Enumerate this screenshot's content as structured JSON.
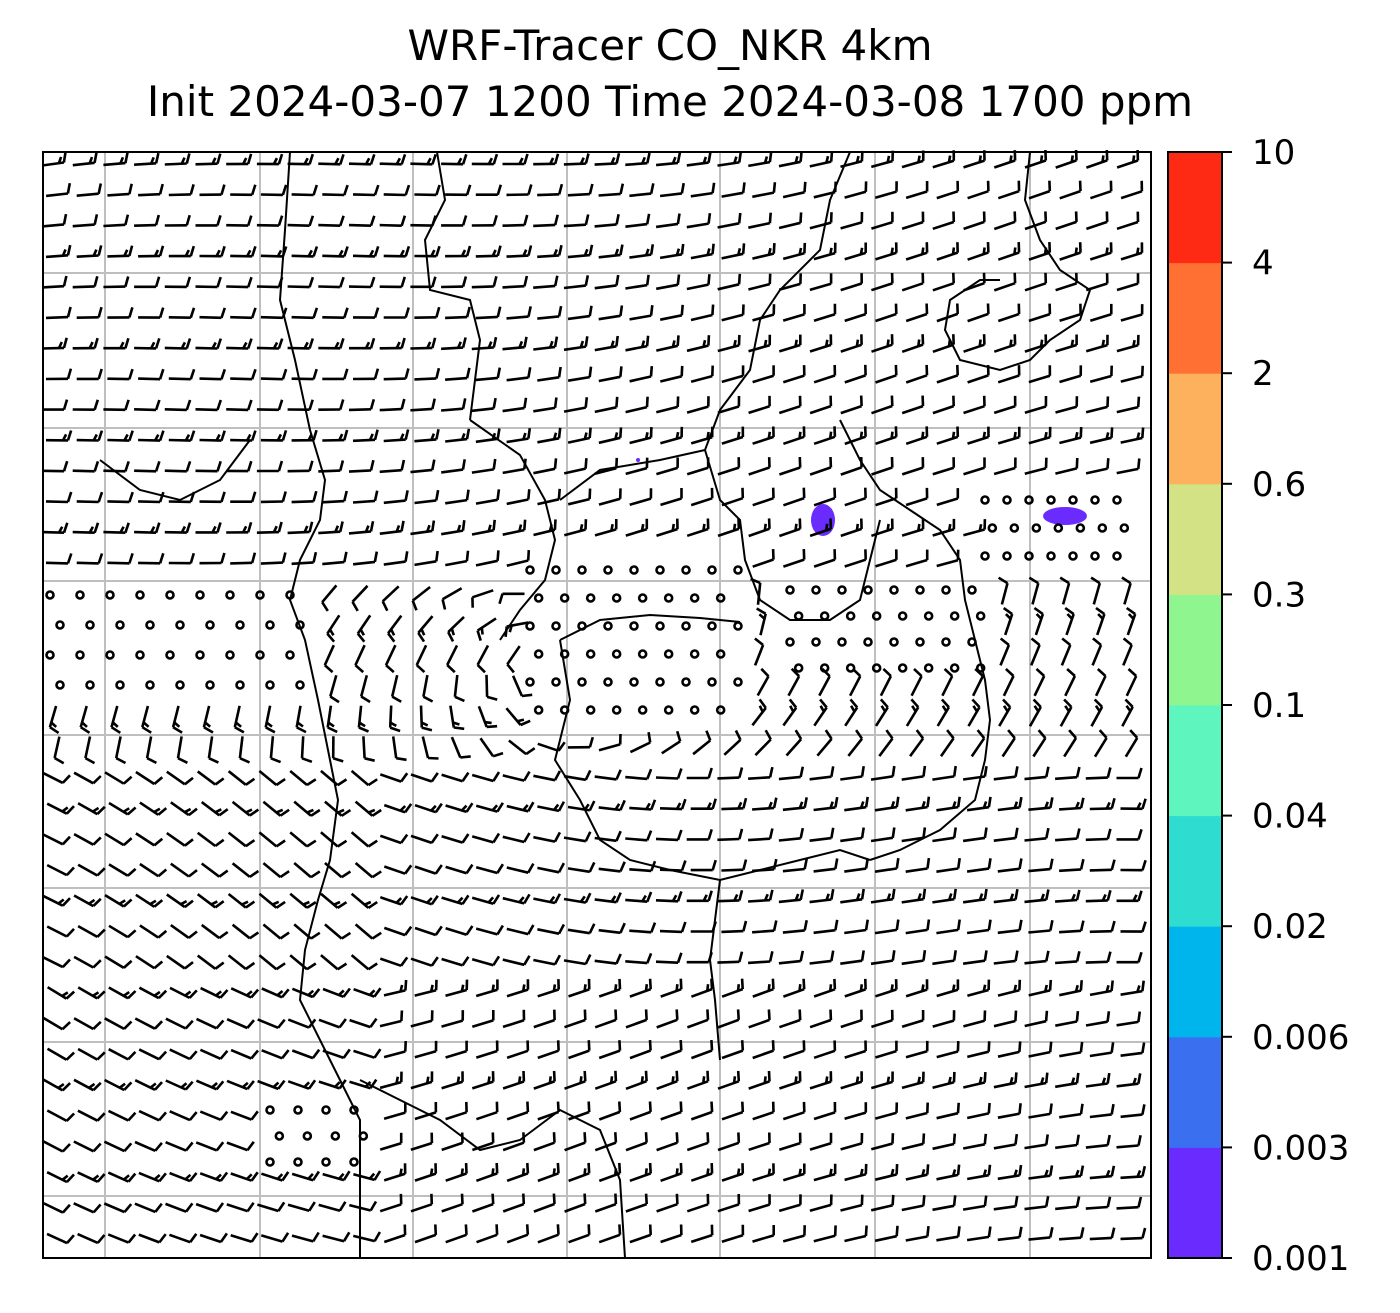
{
  "title": {
    "line1": "WRF-Tracer CO_NKR 4km",
    "line2": "Init 2024-03-07 1200 Time 2024-03-08 1700 ppm"
  },
  "colorbar": {
    "tick_labels": [
      "0.001",
      "0.003",
      "0.006",
      "0.02",
      "0.04",
      "0.1",
      "0.3",
      "0.6",
      "2",
      "4",
      "10"
    ],
    "colors": [
      "#6a2bff",
      "#3a6ff0",
      "#00b4ec",
      "#2fdcd0",
      "#5ef5be",
      "#8ff58f",
      "#d2e285",
      "#fdb15d",
      "#ff7032",
      "#ff2a14"
    ]
  },
  "map": {
    "grid": true,
    "grid_color": "#bfbfbf",
    "tracer_color": "#6a2bff",
    "barb_color": "#000000"
  }
}
